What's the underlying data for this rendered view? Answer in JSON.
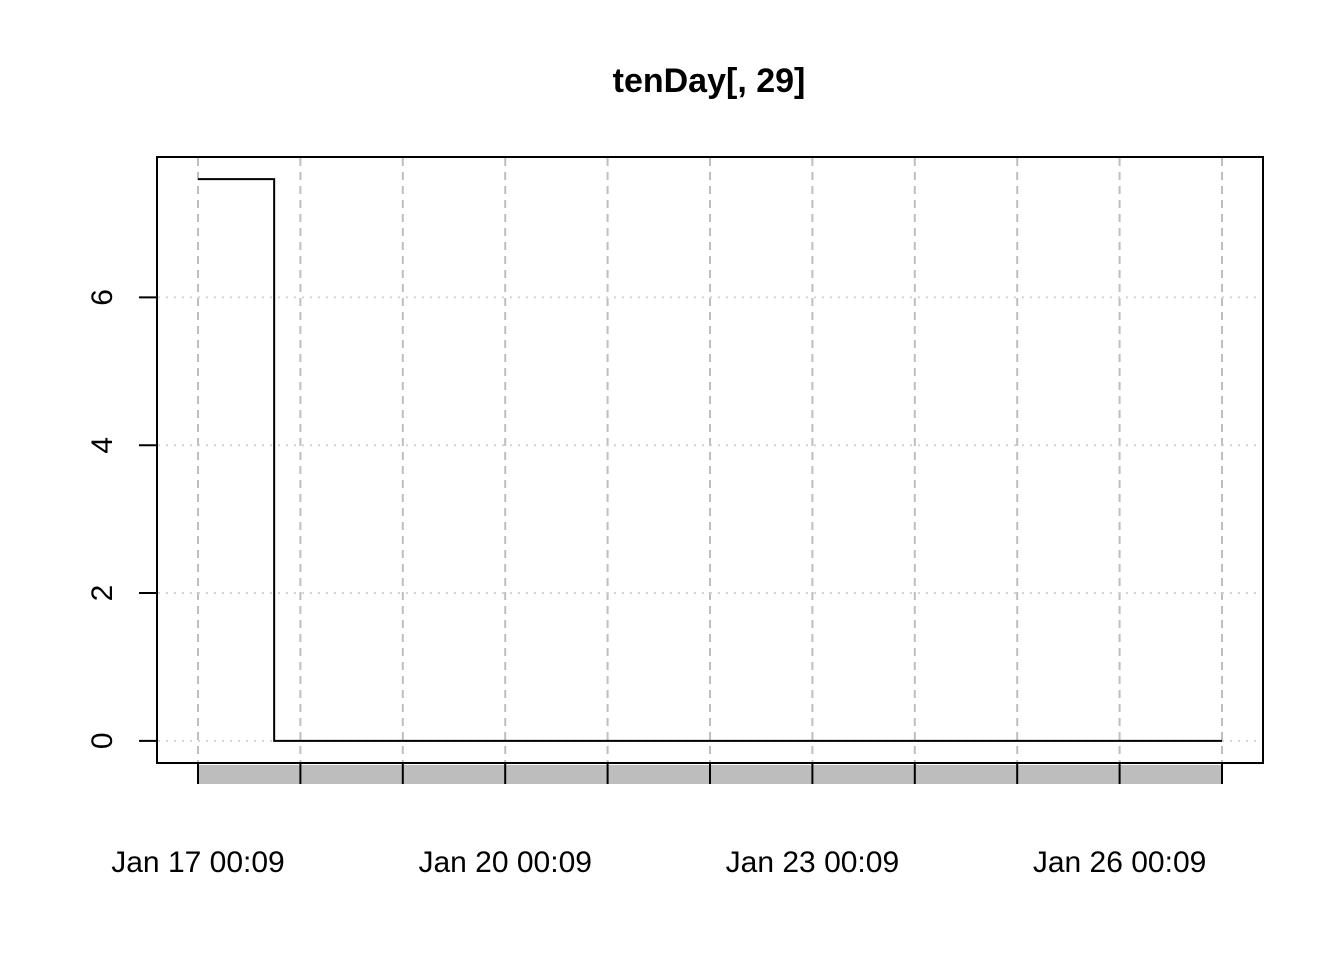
{
  "chart_data": {
    "type": "line",
    "title": "tenDay[, 29]",
    "xlabel": "",
    "ylabel": "",
    "x_tick_labels": [
      "Jan 17 00:09",
      "Jan 20 00:09",
      "Jan 23 00:09",
      "Jan 26 00:09"
    ],
    "y_ticks": [
      0,
      2,
      4,
      6
    ],
    "ylim": [
      -0.3,
      7.9
    ],
    "grid": true,
    "grid_style": "dotted",
    "step": true,
    "x_days": [
      "Jan 17",
      "Jan 18",
      "Jan 19",
      "Jan 20",
      "Jan 21",
      "Jan 22",
      "Jan 23",
      "Jan 24",
      "Jan 25",
      "Jan 26",
      "Jan 27"
    ],
    "series": [
      {
        "x": [
          "Jan 17 00:09",
          "Jan 17 18:00",
          "Jan 27 00:09"
        ],
        "values": [
          7.6,
          0,
          0
        ]
      }
    ]
  }
}
